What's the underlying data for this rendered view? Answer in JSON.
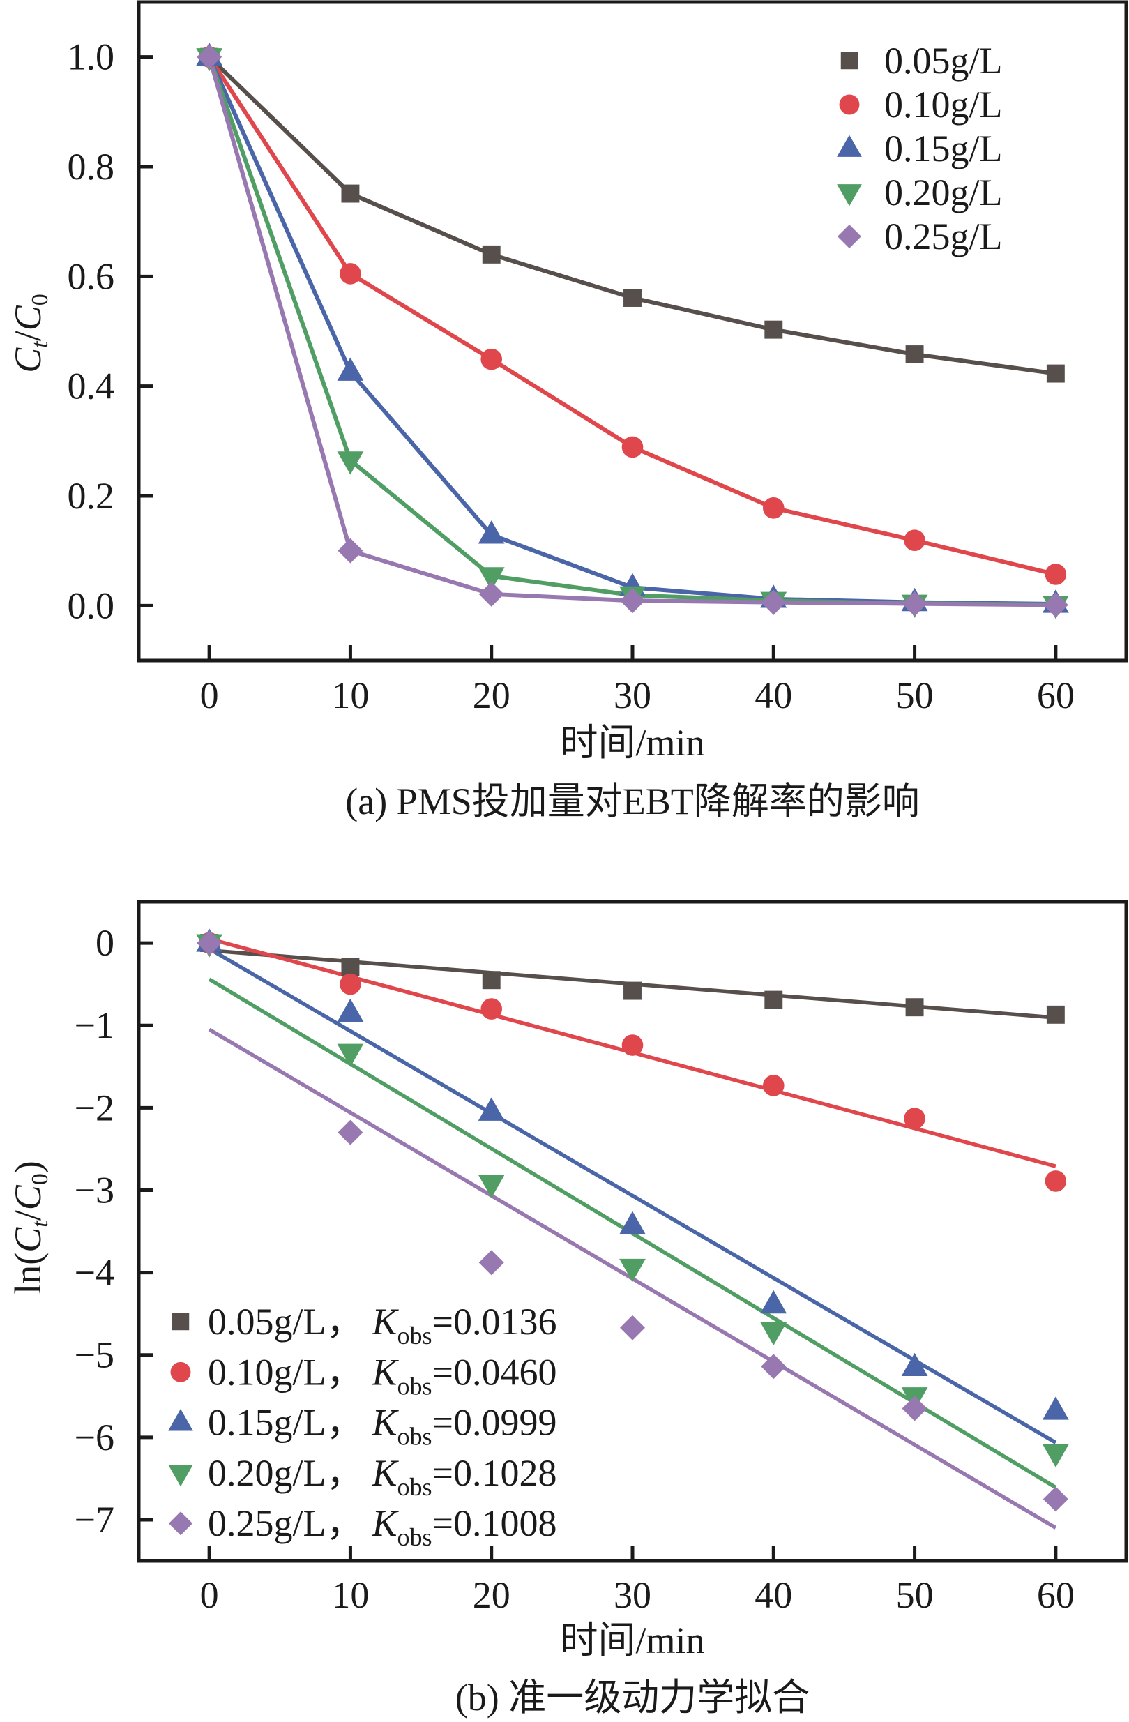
{
  "chart_data": [
    {
      "id": "a",
      "type": "line",
      "title": "",
      "caption": "(a) PMS投加量对EBT降解率的影响",
      "xlabel": "时间/min",
      "ylabel": {
        "base": "C",
        "sub1": "t",
        "sep": "/",
        "base2": "C",
        "sub2": "0"
      },
      "xlim": [
        -5,
        65
      ],
      "ylim": [
        -0.1,
        1.1
      ],
      "xticks": [
        0,
        10,
        20,
        30,
        40,
        50,
        60
      ],
      "xtick_labels": [
        "0",
        "10",
        "20",
        "30",
        "40",
        "50",
        "60"
      ],
      "yticks": [
        0.0,
        0.2,
        0.4,
        0.6,
        0.8,
        1.0
      ],
      "ytick_labels": [
        "0.0",
        "0.2",
        "0.4",
        "0.6",
        "0.8",
        "1.0"
      ],
      "grid": false,
      "legend_position": "top-right",
      "x": [
        0,
        10,
        20,
        30,
        40,
        50,
        60
      ],
      "series": [
        {
          "name": "0.05g/L",
          "marker": "square",
          "color": "#574f4b",
          "values": [
            1.0,
            0.751,
            0.64,
            0.561,
            0.503,
            0.458,
            0.423
          ]
        },
        {
          "name": "0.10g/L",
          "marker": "circle",
          "color": "#e0474c",
          "values": [
            1.0,
            0.605,
            0.449,
            0.289,
            0.178,
            0.119,
            0.057
          ]
        },
        {
          "name": "0.15g/L",
          "marker": "triangle-up",
          "color": "#4a66a8",
          "values": [
            1.0,
            0.426,
            0.129,
            0.033,
            0.012,
            0.006,
            0.003
          ]
        },
        {
          "name": "0.20g/L",
          "marker": "triangle-down",
          "color": "#519e65",
          "values": [
            1.0,
            0.265,
            0.054,
            0.019,
            0.009,
            0.004,
            0.002
          ]
        },
        {
          "name": "0.25g/L",
          "marker": "diamond",
          "color": "#9878b0",
          "values": [
            1.0,
            0.1,
            0.021,
            0.009,
            0.006,
            0.0035,
            0.0012
          ]
        }
      ]
    },
    {
      "id": "b",
      "type": "scatter",
      "title": "",
      "caption": "(b) 准一级动力学拟合",
      "xlabel": "时间/min",
      "ylabel": {
        "prefix": "ln(",
        "base": "C",
        "sub1": "t",
        "sep": "/",
        "base2": "C",
        "sub2": "0",
        "suffix": ")"
      },
      "xlim": [
        -5,
        65
      ],
      "ylim": [
        -7.5,
        0.5
      ],
      "xticks": [
        0,
        10,
        20,
        30,
        40,
        50,
        60
      ],
      "xtick_labels": [
        "0",
        "10",
        "20",
        "30",
        "40",
        "50",
        "60"
      ],
      "yticks": [
        0,
        -1,
        -2,
        -3,
        -4,
        -5,
        -6,
        -7
      ],
      "ytick_labels": [
        "0",
        "−1",
        "−2",
        "−3",
        "−4",
        "−5",
        "−6",
        "−7"
      ],
      "grid": false,
      "legend_position": "bottom-left",
      "x": [
        0,
        10,
        20,
        30,
        40,
        50,
        60
      ],
      "series": [
        {
          "name": "0.05g/L",
          "sep": "，",
          "k_label": "K",
          "k_sub": "obs",
          "k_value": "=0.0136",
          "marker": "square",
          "color": "#574f4b",
          "values": [
            0,
            -0.29,
            -0.45,
            -0.58,
            -0.69,
            -0.78,
            -0.87
          ],
          "fit": {
            "slope": -0.0136,
            "intercept": -0.09
          }
        },
        {
          "name": "0.10g/L",
          "sep": "，",
          "k_label": "K",
          "k_sub": "obs",
          "k_value": "=0.0460",
          "marker": "circle",
          "color": "#e0474c",
          "values": [
            0,
            -0.5,
            -0.8,
            -1.24,
            -1.73,
            -2.13,
            -2.89
          ],
          "fit": {
            "slope": -0.046,
            "intercept": 0.05
          }
        },
        {
          "name": "0.15g/L",
          "sep": "，",
          "k_label": "K",
          "k_sub": "obs",
          "k_value": "=0.0999",
          "marker": "triangle-up",
          "color": "#4a66a8",
          "values": [
            0,
            -0.85,
            -2.05,
            -3.43,
            -4.39,
            -5.15,
            -5.68
          ],
          "fit": {
            "slope": -0.0999,
            "intercept": -0.07
          }
        },
        {
          "name": "0.20g/L",
          "sep": "，",
          "k_label": "K",
          "k_sub": "obs",
          "k_value": "=0.1028",
          "marker": "triangle-down",
          "color": "#519e65",
          "values": [
            0,
            -1.33,
            -2.92,
            -3.94,
            -4.71,
            -5.5,
            -6.19
          ],
          "fit": {
            "slope": -0.1028,
            "intercept": -0.44
          }
        },
        {
          "name": "0.25g/L",
          "sep": "，",
          "k_label": "K",
          "k_sub": "obs",
          "k_value": "=0.1008",
          "marker": "diamond",
          "color": "#9878b0",
          "values": [
            0,
            -2.3,
            -3.88,
            -4.67,
            -5.14,
            -5.65,
            -6.75
          ],
          "fit": {
            "slope": -0.1008,
            "intercept": -1.05
          }
        }
      ]
    }
  ]
}
